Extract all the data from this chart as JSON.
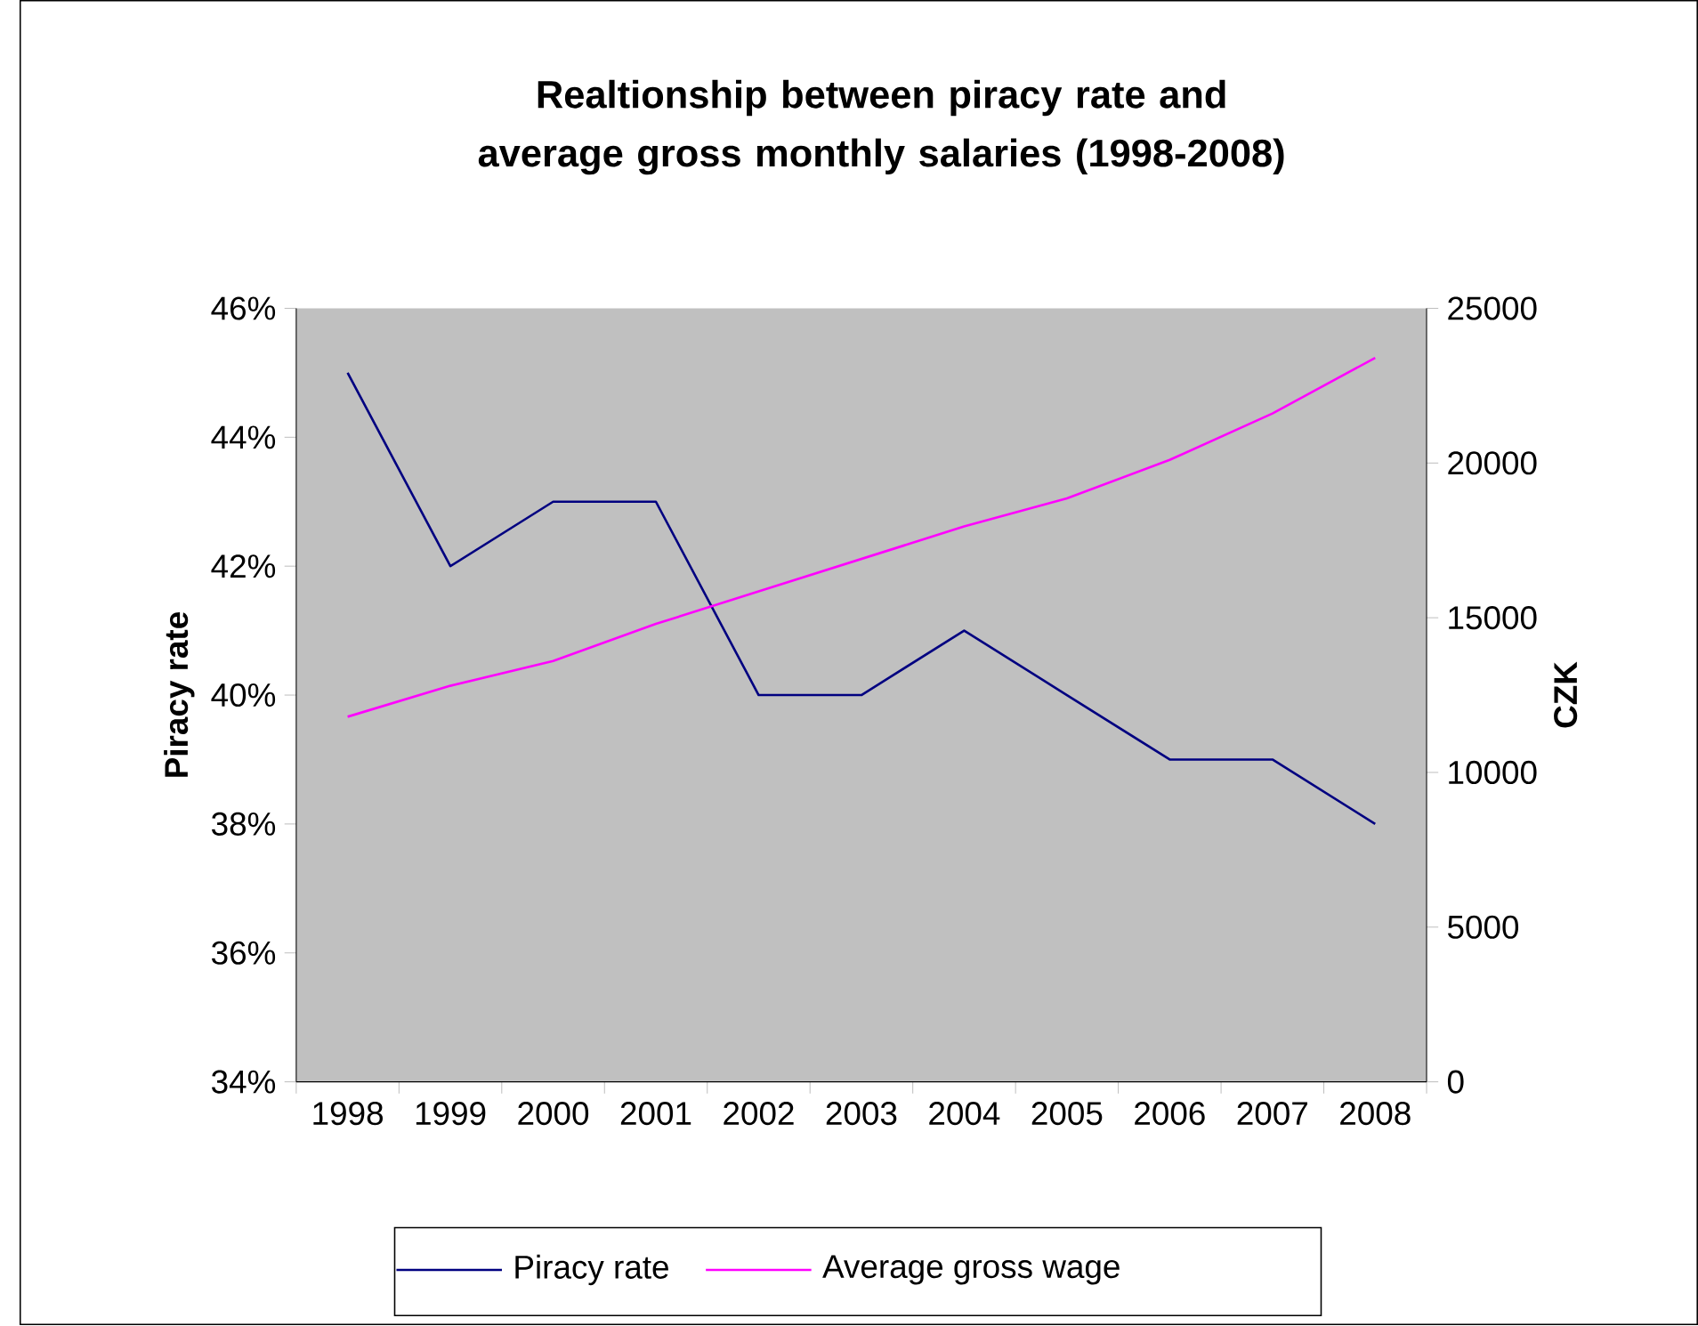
{
  "chart_data": {
    "type": "line",
    "title": "Realtionship between piracy rate and average gross monthly salaries (1998-2008)",
    "categories": [
      "1998",
      "1999",
      "2000",
      "2001",
      "2002",
      "2003",
      "2004",
      "2005",
      "2006",
      "2007",
      "2008"
    ],
    "series": [
      {
        "name": "Piracy rate",
        "color": "#000080",
        "values": [
          45,
          42,
          43,
          43,
          40,
          40,
          41,
          40,
          39,
          39,
          38
        ]
      },
      {
        "name": "Average gross wage",
        "color": "#ff00ff",
        "axis": "y2",
        "values": [
          11800,
          12800,
          13600,
          14800,
          15850,
          16900,
          17950,
          18860,
          20100,
          21600,
          23400
        ]
      }
    ],
    "ylabel": "Piracy rate",
    "y2label": "CZK",
    "ylim": [
      34,
      46
    ],
    "yticks": [
      {
        "value": 34,
        "label": "34%"
      },
      {
        "value": 36,
        "label": "36%"
      },
      {
        "value": 38,
        "label": "38%"
      },
      {
        "value": 40,
        "label": "40%"
      },
      {
        "value": 42,
        "label": "42%"
      },
      {
        "value": 44,
        "label": "44%"
      },
      {
        "value": 46,
        "label": "46%"
      }
    ],
    "y2lim": [
      0,
      25000
    ],
    "y2ticks": [
      0,
      5000,
      10000,
      15000,
      20000,
      25000
    ],
    "legend": "bottom",
    "marker": "none",
    "line_style": "solid"
  }
}
